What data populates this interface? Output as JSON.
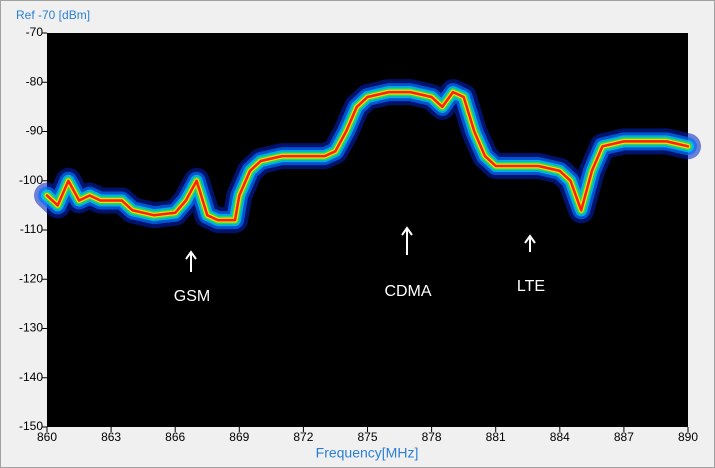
{
  "chart_data": {
    "type": "spectrum",
    "header": "Ref  -70 [dBm]",
    "x_label": "Frequency[MHz]",
    "x": [
      860,
      860.5,
      861,
      861.5,
      862,
      862.5,
      863,
      863.5,
      864,
      865,
      866,
      866.5,
      867,
      867.5,
      868,
      868.8,
      869,
      869.5,
      870,
      871,
      872,
      873,
      873.5,
      874,
      874.5,
      875,
      876,
      877,
      878,
      878.5,
      879,
      879.5,
      880,
      880.5,
      881,
      882,
      883,
      884,
      884.5,
      885,
      885.5,
      886,
      887,
      888,
      889,
      890
    ],
    "values": [
      -103,
      -105,
      -100,
      -104,
      -103,
      -104,
      -104,
      -104,
      -106,
      -107,
      -106.5,
      -104,
      -100,
      -107,
      -108,
      -108,
      -103,
      -98,
      -96,
      -95,
      -95,
      -95,
      -94,
      -90,
      -85,
      -83,
      -82,
      -82,
      -83,
      -85,
      -82,
      -83,
      -90,
      -95,
      -97,
      -97,
      -97,
      -98,
      -100,
      -106,
      -98,
      -93,
      -92,
      -92,
      -92,
      -93
    ],
    "xlim": [
      860,
      890
    ],
    "xticks": [
      860,
      863,
      866,
      869,
      872,
      875,
      878,
      881,
      884,
      887,
      890
    ],
    "ylim": [
      -150,
      -70
    ],
    "yticks": [
      -70,
      -80,
      -90,
      -100,
      -110,
      -120,
      -130,
      -140,
      -150
    ],
    "annotations": [
      "GSM",
      "CDMA",
      "LTE"
    ]
  }
}
